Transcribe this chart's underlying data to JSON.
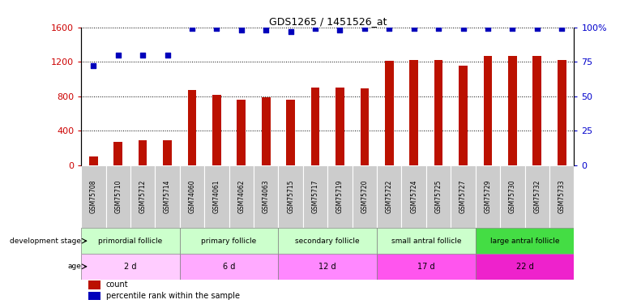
{
  "title": "GDS1265 / 1451526_at",
  "samples": [
    "GSM75708",
    "GSM75710",
    "GSM75712",
    "GSM75714",
    "GSM74060",
    "GSM74061",
    "GSM74062",
    "GSM74063",
    "GSM75715",
    "GSM75717",
    "GSM75719",
    "GSM75720",
    "GSM75722",
    "GSM75724",
    "GSM75725",
    "GSM75727",
    "GSM75729",
    "GSM75730",
    "GSM75732",
    "GSM75733"
  ],
  "counts": [
    100,
    270,
    285,
    290,
    870,
    820,
    760,
    790,
    760,
    900,
    900,
    895,
    1215,
    1225,
    1225,
    1155,
    1270,
    1265,
    1270,
    1220
  ],
  "percentile_ranks": [
    72,
    80,
    80,
    80,
    99,
    99,
    98,
    98,
    97,
    99,
    98,
    99,
    99,
    99,
    99,
    99,
    99,
    99,
    99,
    99
  ],
  "ylim_left": [
    0,
    1600
  ],
  "ylim_right": [
    0,
    100
  ],
  "yticks_left": [
    0,
    400,
    800,
    1200,
    1600
  ],
  "yticks_right": [
    0,
    25,
    50,
    75,
    100
  ],
  "bar_color": "#bb1100",
  "dot_color": "#0000bb",
  "stage_groups": [
    {
      "label": "primordial follicle",
      "color": "#ccffcc",
      "start": 0,
      "end": 4
    },
    {
      "label": "primary follicle",
      "color": "#ccffcc",
      "start": 4,
      "end": 8
    },
    {
      "label": "secondary follicle",
      "color": "#ccffcc",
      "start": 8,
      "end": 12
    },
    {
      "label": "small antral follicle",
      "color": "#ccffcc",
      "start": 12,
      "end": 16
    },
    {
      "label": "large antral follicle",
      "color": "#44dd44",
      "start": 16,
      "end": 20
    }
  ],
  "age_groups": [
    {
      "label": "2 d",
      "color": "#ffccff",
      "start": 0,
      "end": 4
    },
    {
      "label": "6 d",
      "color": "#ffaaff",
      "start": 4,
      "end": 8
    },
    {
      "label": "12 d",
      "color": "#ff88ff",
      "start": 8,
      "end": 12
    },
    {
      "label": "17 d",
      "color": "#ff55ee",
      "start": 12,
      "end": 16
    },
    {
      "label": "22 d",
      "color": "#ee22cc",
      "start": 16,
      "end": 20
    }
  ],
  "tick_label_bg": "#cccccc",
  "xlabel_color": "#cc0000",
  "ylabel_right_color": "#0000cc",
  "legend_count_color": "#bb1100",
  "legend_pct_color": "#0000bb",
  "bar_width": 0.35
}
